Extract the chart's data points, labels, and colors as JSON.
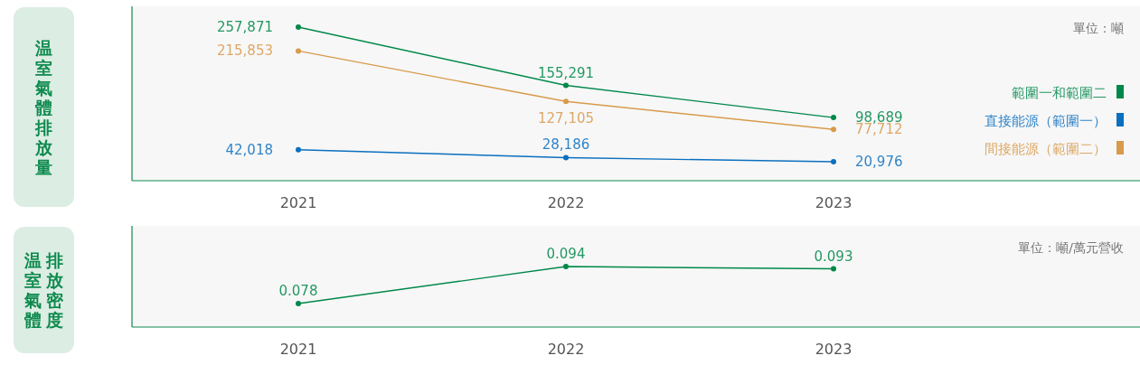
{
  "chart_data": [
    {
      "type": "line",
      "ylabel": "温室氣體排放量",
      "annotations": [
        "單位：噸"
      ],
      "categories": [
        "2021",
        "2022",
        "2023"
      ],
      "series": [
        {
          "name": "範圍一和範圍二",
          "color": "#00884a",
          "values": [
            257871,
            155291,
            98689
          ],
          "value_labels": [
            "257,871",
            "155,291",
            "98,689"
          ]
        },
        {
          "name": "直接能源（範圍一）",
          "color": "#0b6fbf",
          "values": [
            42018,
            28186,
            20976
          ],
          "value_labels": [
            "42,018",
            "28,186",
            "20,976"
          ]
        },
        {
          "name": "間接能源（範圍二）",
          "color": "#d89a4c",
          "values": [
            215853,
            127105,
            77712
          ],
          "value_labels": [
            "215,853",
            "127,105",
            "77,712"
          ]
        }
      ],
      "data_labels": true,
      "legend": "right",
      "marker": "circle"
    },
    {
      "type": "line",
      "ylabel": "温室氣體排放密度",
      "annotations": [
        "單位：噸/萬元營收"
      ],
      "categories": [
        "2021",
        "2022",
        "2023"
      ],
      "series": [
        {
          "color": "#00884a",
          "values": [
            0.078,
            0.094,
            0.093
          ]
        }
      ],
      "data_labels": true,
      "marker": "circle"
    }
  ]
}
